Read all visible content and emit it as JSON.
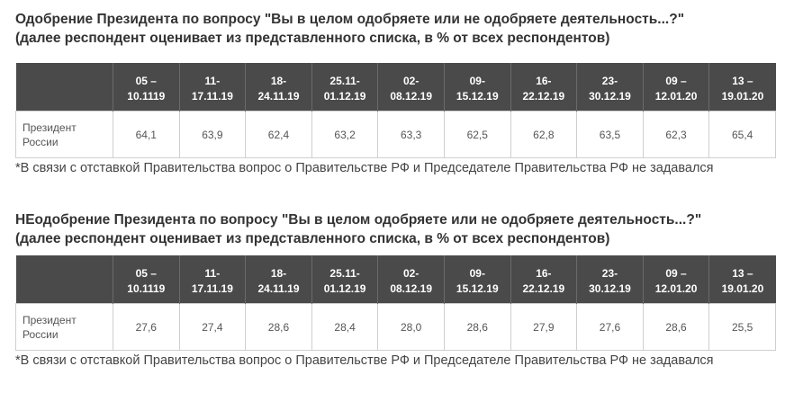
{
  "approval": {
    "title_line1": "Одобрение Президента по вопросу \"Вы в целом одобряете или не одобряете деятельность...?\"",
    "title_line2": "(далее респондент оценивает из представленного списка, в % от всех респондентов)",
    "columns": [
      {
        "line1": "05 –",
        "line2": "10.1119"
      },
      {
        "line1": "11-",
        "line2": "17.11.19"
      },
      {
        "line1": "18-",
        "line2": "24.11.19"
      },
      {
        "line1": "25.11-",
        "line2": "01.12.19"
      },
      {
        "line1": "02-",
        "line2": "08.12.19"
      },
      {
        "line1": "09-",
        "line2": "15.12.19"
      },
      {
        "line1": "16-",
        "line2": "22.12.19"
      },
      {
        "line1": "23-",
        "line2": "30.12.19"
      },
      {
        "line1": "09 –",
        "line2": "12.01.20"
      },
      {
        "line1": "13 –",
        "line2": "19.01.20"
      }
    ],
    "row_label_line1": "Президент",
    "row_label_line2": "России",
    "values": [
      "64,1",
      "63,9",
      "62,4",
      "63,2",
      "63,3",
      "62,5",
      "62,8",
      "63,5",
      "62,3",
      "65,4"
    ],
    "footnote": "*В связи с отставкой Правительства вопрос о Правительстве РФ и Председателе Правительства РФ не задавался"
  },
  "disapproval": {
    "title_line1": "НЕодобрение Президента по вопросу \"Вы в целом одобряете или не одобряете деятельность...?\"",
    "title_line2": "(далее респондент оценивает из представленного списка, в % от всех респондентов)",
    "columns": [
      {
        "line1": "05 –",
        "line2": "10.1119"
      },
      {
        "line1": "11-",
        "line2": "17.11.19"
      },
      {
        "line1": "18-",
        "line2": "24.11.19"
      },
      {
        "line1": "25.11-",
        "line2": "01.12.19"
      },
      {
        "line1": "02-",
        "line2": "08.12.19"
      },
      {
        "line1": "09-",
        "line2": "15.12.19"
      },
      {
        "line1": "16-",
        "line2": "22.12.19"
      },
      {
        "line1": "23-",
        "line2": "30.12.19"
      },
      {
        "line1": "09 –",
        "line2": "12.01.20"
      },
      {
        "line1": "13 –",
        "line2": "19.01.20"
      }
    ],
    "row_label_line1": "Президент",
    "row_label_line2": "России",
    "values": [
      "27,6",
      "27,4",
      "28,6",
      "28,4",
      "28,0",
      "28,6",
      "27,9",
      "27,6",
      "28,6",
      "25,5"
    ],
    "footnote": "*В связи с отставкой Правительства вопрос о Правительстве РФ и Председателе Правительства РФ не задавался"
  }
}
